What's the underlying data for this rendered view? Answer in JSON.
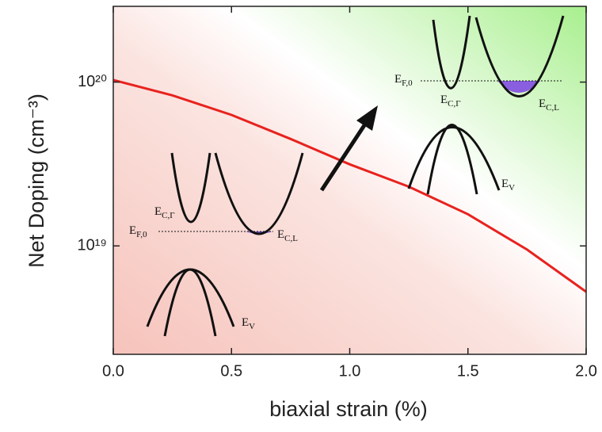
{
  "chart_data": {
    "type": "line",
    "x_label": "biaxial strain (%)",
    "y_label": "Net Doping (cm⁻³)",
    "x": [
      0,
      0.25,
      0.5,
      0.75,
      1.0,
      1.25,
      1.5,
      1.75,
      2.0
    ],
    "values": [
      1.03e+20,
      8.3e+19,
      6.3e+19,
      4.5e+19,
      3.15e+19,
      2.3e+19,
      1.56e+19,
      9.5e+18,
      5.25e+18
    ],
    "color": "#e8221e",
    "xlim": [
      0,
      2
    ],
    "xticks": [
      {
        "value": 0,
        "label": "0.0"
      },
      0.5,
      {
        "value": 1,
        "label": "1.0"
      },
      1.5,
      {
        "value": 2,
        "label": "2.0"
      }
    ],
    "ylim": [
      2.18e+18,
      2.9e+20
    ],
    "log_y": true,
    "yticks": [
      {
        "value": 1e+19,
        "label": "10¹⁹"
      },
      {
        "value": 1e+20,
        "label": "10²⁰"
      }
    ],
    "annotations": [
      {
        "text": "E",
        "sub": "C,Γ"
      },
      {
        "text": "E",
        "sub": "F,0"
      },
      {
        "text": "E",
        "sub": "C,L"
      },
      {
        "text": "E",
        "sub": "V"
      },
      {
        "text": "E",
        "sub": "F,0"
      },
      {
        "text": "E",
        "sub": "C,Γ"
      },
      {
        "text": "E",
        "sub": "C,L"
      },
      {
        "text": "E",
        "sub": "V"
      }
    ]
  }
}
